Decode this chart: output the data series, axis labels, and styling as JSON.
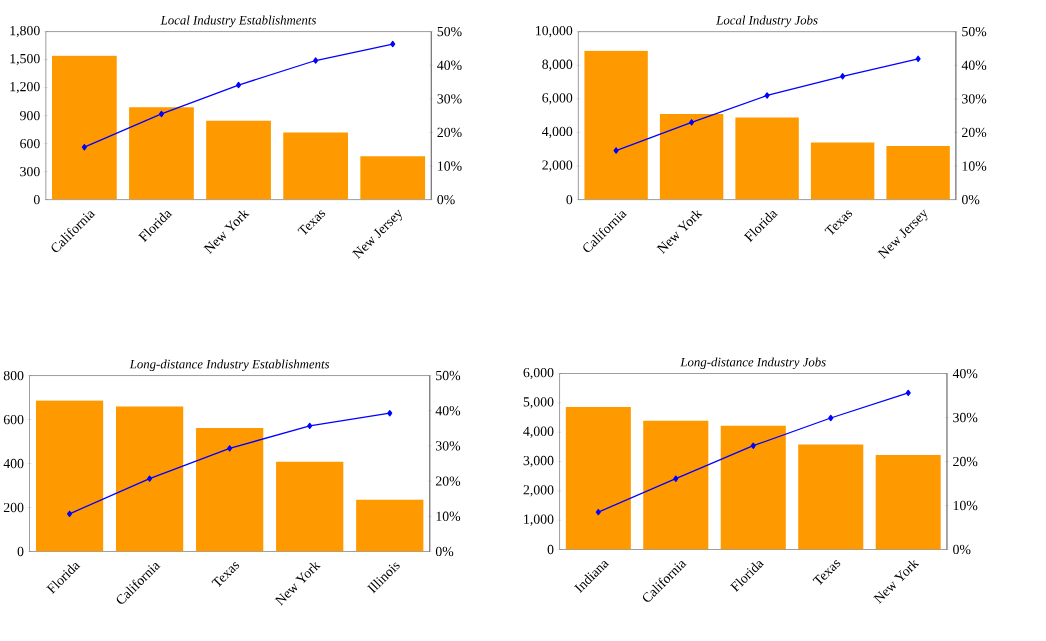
{
  "chart_data": [
    {
      "type": "bar",
      "title": "Local Industry Establishments",
      "categories": [
        "California",
        "Florida",
        "New York",
        "Texas",
        "New Jersey"
      ],
      "series": [
        {
          "color": "#ff9900",
          "values": [
            1540,
            990,
            845,
            720,
            465
          ]
        },
        {
          "type": "line",
          "axis": "y2",
          "color": "#0000ff",
          "marker": "diamond",
          "values": [
            15.6,
            25.5,
            34.1,
            41.4,
            46.3
          ]
        }
      ],
      "ylim": [
        0,
        1800
      ],
      "yticks": [
        0,
        300,
        600,
        900,
        {
          "value": 1200,
          "label": "1,200"
        },
        {
          "value": 1500,
          "label": "1,500"
        },
        {
          "value": 1800,
          "label": "1,800"
        }
      ],
      "y2lim": [
        0,
        50
      ],
      "y2ticks": [
        {
          "value": 0,
          "label": "0%"
        },
        {
          "value": 10,
          "label": "10%"
        },
        {
          "value": 20,
          "label": "20%"
        },
        {
          "value": 30,
          "label": "30%"
        },
        {
          "value": 40,
          "label": "40%"
        },
        {
          "value": 50,
          "label": "50%"
        }
      ]
    },
    {
      "type": "bar",
      "title": "Local Industry Jobs",
      "categories": [
        "California",
        "New York",
        "Florida",
        "Texas",
        "New Jersey"
      ],
      "series": [
        {
          "color": "#ff9900",
          "values": [
            8860,
            5100,
            4890,
            3400,
            3190
          ]
        },
        {
          "type": "line",
          "axis": "y2",
          "color": "#0000ff",
          "marker": "diamond",
          "values": [
            14.6,
            23.0,
            31.0,
            36.7,
            41.9
          ]
        }
      ],
      "ylim": [
        0,
        10000
      ],
      "yticks": [
        0,
        {
          "value": 2000,
          "label": "2,000"
        },
        {
          "value": 4000,
          "label": "4,000"
        },
        {
          "value": 6000,
          "label": "6,000"
        },
        {
          "value": 8000,
          "label": "8,000"
        },
        {
          "value": 10000,
          "label": "10,000"
        }
      ],
      "y2lim": [
        0,
        50
      ],
      "y2ticks": [
        {
          "value": 0,
          "label": "0%"
        },
        {
          "value": 10,
          "label": "10%"
        },
        {
          "value": 20,
          "label": "20%"
        },
        {
          "value": 30,
          "label": "30%"
        },
        {
          "value": 40,
          "label": "40%"
        },
        {
          "value": 50,
          "label": "50%"
        }
      ]
    },
    {
      "type": "bar",
      "title": "Long-distance Industry Establishments",
      "categories": [
        "Florida",
        "California",
        "Texas",
        "New York",
        "Illinois"
      ],
      "series": [
        {
          "color": "#ff9900",
          "values": [
            686,
            659,
            561,
            408,
            235
          ]
        },
        {
          "type": "line",
          "axis": "y2",
          "color": "#0000ff",
          "marker": "diamond",
          "values": [
            10.7,
            20.7,
            29.3,
            35.7,
            39.3
          ]
        }
      ],
      "ylim": [
        0,
        800
      ],
      "yticks": [
        0,
        200,
        400,
        600,
        800
      ],
      "y2lim": [
        0,
        50
      ],
      "y2ticks": [
        {
          "value": 0,
          "label": "0%"
        },
        {
          "value": 10,
          "label": "10%"
        },
        {
          "value": 20,
          "label": "20%"
        },
        {
          "value": 30,
          "label": "30%"
        },
        {
          "value": 40,
          "label": "40%"
        },
        {
          "value": 50,
          "label": "50%"
        }
      ]
    },
    {
      "type": "bar",
      "title": "Long-distance Industry Jobs",
      "categories": [
        "Indiana",
        "California",
        "Florida",
        "Texas",
        "New York"
      ],
      "series": [
        {
          "color": "#ff9900",
          "values": [
            4860,
            4390,
            4220,
            3580,
            3220
          ]
        },
        {
          "type": "line",
          "axis": "y2",
          "color": "#0000ff",
          "marker": "diamond",
          "values": [
            8.5,
            16.1,
            23.6,
            29.9,
            35.6
          ]
        }
      ],
      "ylim": [
        0,
        6000
      ],
      "yticks": [
        0,
        {
          "value": 1000,
          "label": "1,000"
        },
        {
          "value": 2000,
          "label": "2,000"
        },
        {
          "value": 3000,
          "label": "3,000"
        },
        {
          "value": 4000,
          "label": "4,000"
        },
        {
          "value": 5000,
          "label": "5,000"
        },
        {
          "value": 6000,
          "label": "6,000"
        }
      ],
      "y2lim": [
        0,
        40
      ],
      "y2ticks": [
        {
          "value": 0,
          "label": "0%"
        },
        {
          "value": 10,
          "label": "10%"
        },
        {
          "value": 20,
          "label": "20%"
        },
        {
          "value": 30,
          "label": "30%"
        },
        {
          "value": 40,
          "label": "40%"
        }
      ]
    }
  ]
}
